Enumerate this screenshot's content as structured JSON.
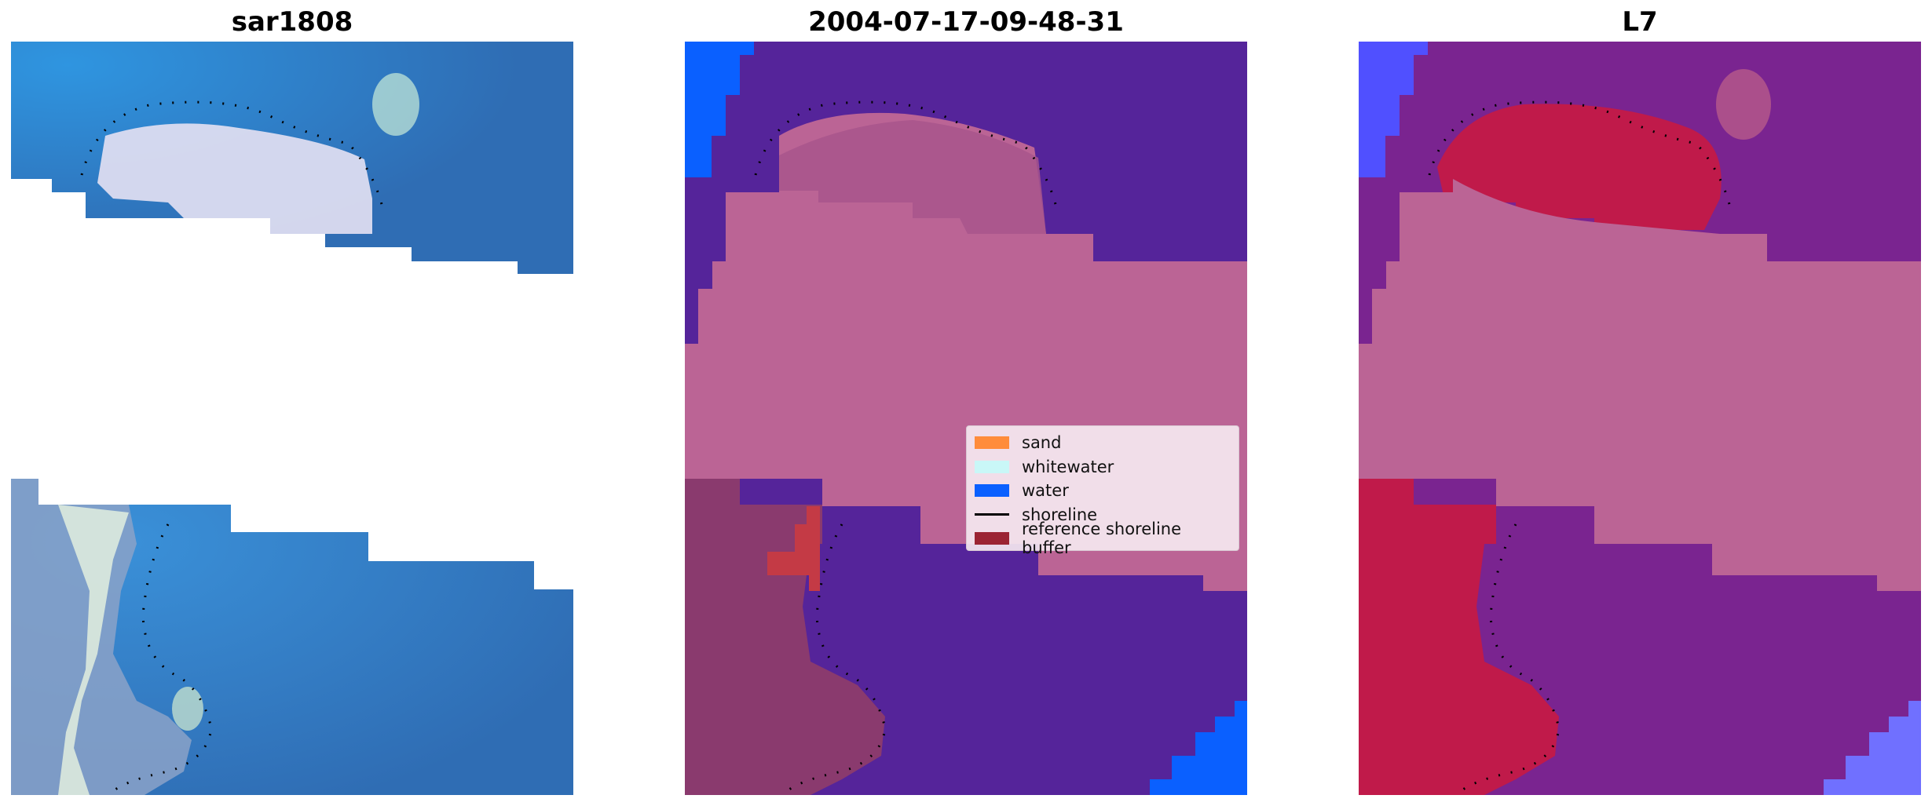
{
  "panels": [
    {
      "title": "sar1808"
    },
    {
      "title": "2004-07-17-09-48-31"
    },
    {
      "title": "L7"
    }
  ],
  "legend": {
    "items": [
      {
        "label": "sand",
        "color": "#ff8c3b",
        "kind": "patch"
      },
      {
        "label": "whitewater",
        "color": "#c9f7f7",
        "kind": "patch"
      },
      {
        "label": "water",
        "color": "#0a60ff",
        "kind": "patch"
      },
      {
        "label": "shoreline",
        "color": "#000000",
        "kind": "line"
      },
      {
        "label": "reference shoreline buffer",
        "color": "#9b2333",
        "kind": "patch"
      }
    ]
  },
  "colors": {
    "rgb_water": "#2f6db4",
    "rgb_water_light": "#3a8fd4",
    "rgb_whitewater": "#dcdcf0",
    "class_water": "#55249a",
    "class_blue_water": "#0a60ff",
    "class_buffer": "#bb6495",
    "class_land": "#8a3a6e",
    "class_sand_red": "#c43a45",
    "mndwi_purple": "#7a2490",
    "mndwi_red": "#c01a4a",
    "mndwi_blue": "#5050ff",
    "shoreline": "#000000"
  }
}
